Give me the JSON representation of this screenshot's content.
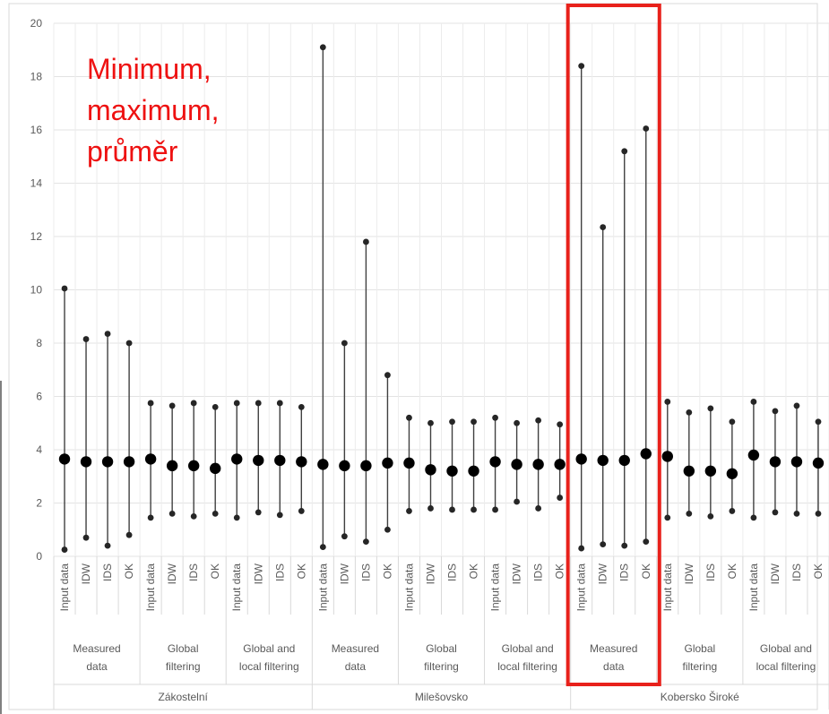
{
  "chart_data": {
    "type": "scatter",
    "subtype": "min-max-mean range plot",
    "title": "",
    "xlabel": "",
    "ylabel": "",
    "ylim": [
      0,
      20
    ],
    "yticks": [
      0,
      2,
      4,
      6,
      8,
      10,
      12,
      14,
      16,
      18,
      20
    ],
    "grid": true,
    "annotation": [
      "Minimum,",
      "maximum,",
      "průměr"
    ],
    "annotation_color": "#ee1111",
    "highlight_box_color": "#e8211b",
    "highlight_group": "Kobersko Široké / Measured data",
    "marker_color": "#000000",
    "whisker_color": "#404040",
    "sites": [
      {
        "name": "Zákostelní",
        "groups": [
          {
            "label": [
              "Measured",
              "data"
            ],
            "points": [
              {
                "method": "Input data",
                "min": 0.25,
                "max": 10.05,
                "mean": 3.65
              },
              {
                "method": "IDW",
                "min": 0.7,
                "max": 8.15,
                "mean": 3.55
              },
              {
                "method": "IDS",
                "min": 0.4,
                "max": 8.35,
                "mean": 3.55
              },
              {
                "method": "OK",
                "min": 0.8,
                "max": 8.0,
                "mean": 3.55
              }
            ]
          },
          {
            "label": [
              "Global",
              "filtering"
            ],
            "points": [
              {
                "method": "Input data",
                "min": 1.45,
                "max": 5.75,
                "mean": 3.65
              },
              {
                "method": "IDW",
                "min": 1.6,
                "max": 5.65,
                "mean": 3.4
              },
              {
                "method": "IDS",
                "min": 1.5,
                "max": 5.75,
                "mean": 3.4
              },
              {
                "method": "OK",
                "min": 1.6,
                "max": 5.6,
                "mean": 3.3
              }
            ]
          },
          {
            "label": [
              "Global and",
              "local filtering"
            ],
            "points": [
              {
                "method": "Input data",
                "min": 1.45,
                "max": 5.75,
                "mean": 3.65
              },
              {
                "method": "IDW",
                "min": 1.65,
                "max": 5.75,
                "mean": 3.6
              },
              {
                "method": "IDS",
                "min": 1.55,
                "max": 5.75,
                "mean": 3.6
              },
              {
                "method": "OK",
                "min": 1.7,
                "max": 5.6,
                "mean": 3.55
              }
            ]
          }
        ]
      },
      {
        "name": "Milešovsko",
        "groups": [
          {
            "label": [
              "Measured",
              "data"
            ],
            "points": [
              {
                "method": "Input data",
                "min": 0.35,
                "max": 19.1,
                "mean": 3.45
              },
              {
                "method": "IDW",
                "min": 0.75,
                "max": 8.0,
                "mean": 3.4
              },
              {
                "method": "IDS",
                "min": 0.55,
                "max": 11.8,
                "mean": 3.4
              },
              {
                "method": "OK",
                "min": 1.0,
                "max": 6.8,
                "mean": 3.5
              }
            ]
          },
          {
            "label": [
              "Global",
              "filtering"
            ],
            "points": [
              {
                "method": "Input data",
                "min": 1.7,
                "max": 5.2,
                "mean": 3.5
              },
              {
                "method": "IDW",
                "min": 1.8,
                "max": 5.0,
                "mean": 3.25
              },
              {
                "method": "IDS",
                "min": 1.75,
                "max": 5.05,
                "mean": 3.2
              },
              {
                "method": "OK",
                "min": 1.75,
                "max": 5.05,
                "mean": 3.2
              }
            ]
          },
          {
            "label": [
              "Global and",
              "local filtering"
            ],
            "points": [
              {
                "method": "Input data",
                "min": 1.75,
                "max": 5.2,
                "mean": 3.55
              },
              {
                "method": "IDW",
                "min": 2.05,
                "max": 5.0,
                "mean": 3.45
              },
              {
                "method": "IDS",
                "min": 1.8,
                "max": 5.1,
                "mean": 3.45
              },
              {
                "method": "OK",
                "min": 2.2,
                "max": 4.95,
                "mean": 3.45
              }
            ]
          }
        ]
      },
      {
        "name": "Kobersko Široké",
        "groups": [
          {
            "label": [
              "Measured",
              "data"
            ],
            "points": [
              {
                "method": "Input data",
                "min": 0.3,
                "max": 18.4,
                "mean": 3.65
              },
              {
                "method": "IDW",
                "min": 0.45,
                "max": 12.35,
                "mean": 3.6
              },
              {
                "method": "IDS",
                "min": 0.4,
                "max": 15.2,
                "mean": 3.6
              },
              {
                "method": "OK",
                "min": 0.55,
                "max": 16.05,
                "mean": 3.85
              }
            ]
          },
          {
            "label": [
              "Global",
              "filtering"
            ],
            "points": [
              {
                "method": "Input data",
                "min": 1.45,
                "max": 5.8,
                "mean": 3.75
              },
              {
                "method": "IDW",
                "min": 1.6,
                "max": 5.4,
                "mean": 3.2
              },
              {
                "method": "IDS",
                "min": 1.5,
                "max": 5.55,
                "mean": 3.2
              },
              {
                "method": "OK",
                "min": 1.7,
                "max": 5.05,
                "mean": 3.1
              }
            ]
          },
          {
            "label": [
              "Global and",
              "local filtering"
            ],
            "points": [
              {
                "method": "Input data",
                "min": 1.45,
                "max": 5.8,
                "mean": 3.8
              },
              {
                "method": "IDW",
                "min": 1.65,
                "max": 5.45,
                "mean": 3.55
              },
              {
                "method": "IDS",
                "min": 1.6,
                "max": 5.65,
                "mean": 3.55
              },
              {
                "method": "OK",
                "min": 1.6,
                "max": 5.05,
                "mean": 3.5
              }
            ]
          }
        ]
      }
    ]
  }
}
